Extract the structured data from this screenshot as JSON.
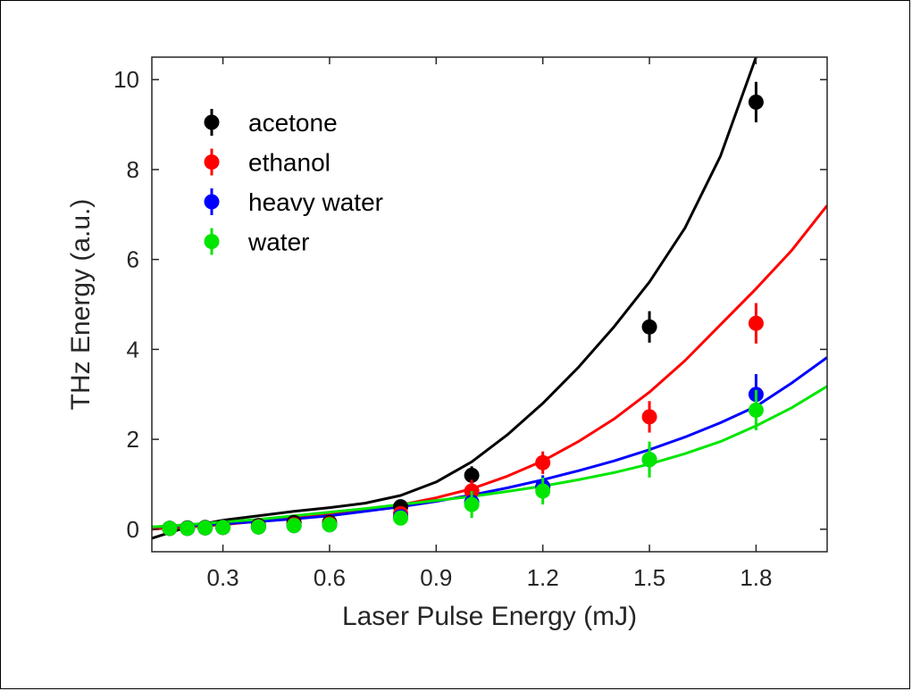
{
  "chart_data": {
    "type": "scatter",
    "title": "",
    "xlabel": "Laser Pulse Energy (mJ)",
    "ylabel": "THz Energy (a.u.)",
    "xlim": [
      0.1,
      2.0
    ],
    "ylim": [
      -0.5,
      10.5
    ],
    "xticks": [
      "0.3",
      "0.6",
      "0.9",
      "1.2",
      "1.5",
      "1.8"
    ],
    "yticks": [
      "0",
      "2",
      "4",
      "6",
      "8",
      "10"
    ],
    "grid": false,
    "legend_position": "top-left",
    "series": [
      {
        "name": "acetone",
        "color": "#000000",
        "points": [
          {
            "x": 0.15,
            "y": 0.02,
            "err": 0.05
          },
          {
            "x": 0.2,
            "y": 0.03,
            "err": 0.05
          },
          {
            "x": 0.25,
            "y": 0.04,
            "err": 0.05
          },
          {
            "x": 0.3,
            "y": 0.05,
            "err": 0.05
          },
          {
            "x": 0.4,
            "y": 0.08,
            "err": 0.06
          },
          {
            "x": 0.5,
            "y": 0.15,
            "err": 0.08
          },
          {
            "x": 0.6,
            "y": 0.15,
            "err": 0.1
          },
          {
            "x": 0.8,
            "y": 0.5,
            "err": 0.15
          },
          {
            "x": 1.0,
            "y": 1.2,
            "err": 0.2
          },
          {
            "x": 1.5,
            "y": 4.5,
            "err": 0.35
          },
          {
            "x": 1.8,
            "y": 9.5,
            "err": 0.45
          }
        ],
        "fit": [
          [
            0.1,
            -0.2
          ],
          [
            0.2,
            0.05
          ],
          [
            0.3,
            0.2
          ],
          [
            0.4,
            0.3
          ],
          [
            0.5,
            0.4
          ],
          [
            0.6,
            0.48
          ],
          [
            0.7,
            0.58
          ],
          [
            0.8,
            0.75
          ],
          [
            0.9,
            1.05
          ],
          [
            1.0,
            1.5
          ],
          [
            1.1,
            2.1
          ],
          [
            1.2,
            2.8
          ],
          [
            1.3,
            3.6
          ],
          [
            1.4,
            4.5
          ],
          [
            1.5,
            5.5
          ],
          [
            1.6,
            6.7
          ],
          [
            1.7,
            8.3
          ],
          [
            1.8,
            10.5
          ]
        ]
      },
      {
        "name": "ethanol",
        "color": "#ff0000",
        "points": [
          {
            "x": 0.15,
            "y": 0.02,
            "err": 0.05
          },
          {
            "x": 0.2,
            "y": 0.02,
            "err": 0.05
          },
          {
            "x": 0.25,
            "y": 0.03,
            "err": 0.05
          },
          {
            "x": 0.3,
            "y": 0.04,
            "err": 0.05
          },
          {
            "x": 0.4,
            "y": 0.06,
            "err": 0.05
          },
          {
            "x": 0.5,
            "y": 0.1,
            "err": 0.08
          },
          {
            "x": 0.6,
            "y": 0.12,
            "err": 0.1
          },
          {
            "x": 0.8,
            "y": 0.35,
            "err": 0.15
          },
          {
            "x": 1.0,
            "y": 0.85,
            "err": 0.25
          },
          {
            "x": 1.2,
            "y": 1.48,
            "err": 0.25
          },
          {
            "x": 1.5,
            "y": 2.5,
            "err": 0.35
          },
          {
            "x": 1.8,
            "y": 4.58,
            "err": 0.45
          }
        ],
        "fit": [
          [
            0.1,
            0.0
          ],
          [
            0.2,
            0.05
          ],
          [
            0.3,
            0.1
          ],
          [
            0.4,
            0.18
          ],
          [
            0.5,
            0.26
          ],
          [
            0.6,
            0.34
          ],
          [
            0.7,
            0.43
          ],
          [
            0.8,
            0.54
          ],
          [
            0.9,
            0.7
          ],
          [
            1.0,
            0.9
          ],
          [
            1.1,
            1.18
          ],
          [
            1.2,
            1.52
          ],
          [
            1.3,
            1.95
          ],
          [
            1.4,
            2.45
          ],
          [
            1.5,
            3.05
          ],
          [
            1.6,
            3.75
          ],
          [
            1.7,
            4.55
          ],
          [
            1.8,
            5.35
          ],
          [
            1.9,
            6.2
          ],
          [
            2.0,
            7.2
          ]
        ]
      },
      {
        "name": "heavy water",
        "color": "#0000ff",
        "points": [
          {
            "x": 0.15,
            "y": 0.02,
            "err": 0.05
          },
          {
            "x": 0.2,
            "y": 0.02,
            "err": 0.05
          },
          {
            "x": 0.25,
            "y": 0.03,
            "err": 0.05
          },
          {
            "x": 0.3,
            "y": 0.04,
            "err": 0.05
          },
          {
            "x": 0.4,
            "y": 0.05,
            "err": 0.05
          },
          {
            "x": 0.5,
            "y": 0.08,
            "err": 0.08
          },
          {
            "x": 0.6,
            "y": 0.1,
            "err": 0.1
          },
          {
            "x": 0.8,
            "y": 0.28,
            "err": 0.15
          },
          {
            "x": 1.0,
            "y": 0.6,
            "err": 0.2
          },
          {
            "x": 1.2,
            "y": 0.95,
            "err": 0.25
          },
          {
            "x": 1.5,
            "y": 1.55,
            "err": 0.3
          },
          {
            "x": 1.8,
            "y": 3.0,
            "err": 0.45
          }
        ],
        "fit": [
          [
            0.1,
            0.05
          ],
          [
            0.2,
            0.08
          ],
          [
            0.3,
            0.12
          ],
          [
            0.4,
            0.17
          ],
          [
            0.5,
            0.23
          ],
          [
            0.6,
            0.3
          ],
          [
            0.7,
            0.4
          ],
          [
            0.8,
            0.5
          ],
          [
            0.9,
            0.62
          ],
          [
            1.0,
            0.76
          ],
          [
            1.1,
            0.92
          ],
          [
            1.2,
            1.1
          ],
          [
            1.3,
            1.3
          ],
          [
            1.4,
            1.52
          ],
          [
            1.5,
            1.77
          ],
          [
            1.6,
            2.05
          ],
          [
            1.7,
            2.37
          ],
          [
            1.8,
            2.73
          ],
          [
            1.9,
            3.25
          ],
          [
            2.0,
            3.82
          ]
        ]
      },
      {
        "name": "water",
        "color": "#00e600",
        "points": [
          {
            "x": 0.15,
            "y": 0.02,
            "err": 0.05
          },
          {
            "x": 0.2,
            "y": 0.02,
            "err": 0.05
          },
          {
            "x": 0.25,
            "y": 0.03,
            "err": 0.05
          },
          {
            "x": 0.3,
            "y": 0.04,
            "err": 0.05
          },
          {
            "x": 0.4,
            "y": 0.05,
            "err": 0.05
          },
          {
            "x": 0.5,
            "y": 0.08,
            "err": 0.08
          },
          {
            "x": 0.6,
            "y": 0.1,
            "err": 0.1
          },
          {
            "x": 0.8,
            "y": 0.25,
            "err": 0.15
          },
          {
            "x": 1.0,
            "y": 0.55,
            "err": 0.3
          },
          {
            "x": 1.2,
            "y": 0.85,
            "err": 0.3
          },
          {
            "x": 1.5,
            "y": 1.55,
            "err": 0.4
          },
          {
            "x": 1.8,
            "y": 2.65,
            "err": 0.45
          }
        ],
        "fit": [
          [
            0.1,
            0.05
          ],
          [
            0.2,
            0.1
          ],
          [
            0.3,
            0.16
          ],
          [
            0.4,
            0.22
          ],
          [
            0.5,
            0.3
          ],
          [
            0.6,
            0.38
          ],
          [
            0.7,
            0.46
          ],
          [
            0.8,
            0.55
          ],
          [
            0.9,
            0.64
          ],
          [
            1.0,
            0.73
          ],
          [
            1.1,
            0.84
          ],
          [
            1.2,
            0.96
          ],
          [
            1.3,
            1.1
          ],
          [
            1.4,
            1.26
          ],
          [
            1.5,
            1.45
          ],
          [
            1.6,
            1.68
          ],
          [
            1.7,
            1.95
          ],
          [
            1.8,
            2.3
          ],
          [
            1.9,
            2.7
          ],
          [
            2.0,
            3.18
          ]
        ]
      }
    ]
  }
}
